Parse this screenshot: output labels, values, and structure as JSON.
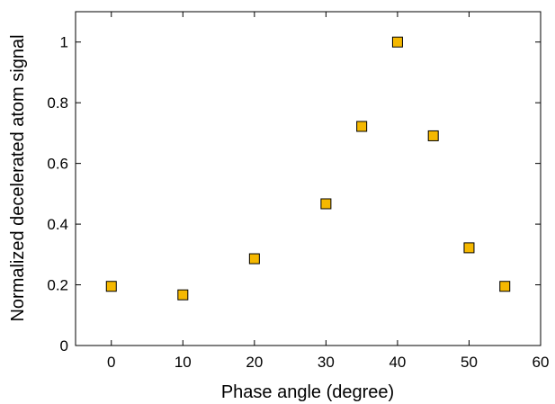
{
  "chart_data": {
    "type": "scatter",
    "xlabel": "Phase angle (degree)",
    "ylabel": "Normalized decelerated atom signal",
    "xlim": [
      -5,
      60
    ],
    "ylim": [
      0,
      1.1
    ],
    "xticks": [
      0,
      10,
      20,
      30,
      40,
      50,
      60
    ],
    "yticks": [
      0,
      0.2,
      0.4,
      0.6,
      0.8,
      1
    ],
    "ytick_labels": [
      "0",
      "0.2",
      "0.4",
      "0.6",
      "0.8",
      "1"
    ],
    "grid": false,
    "marker": "square",
    "marker_color": "#f5b800",
    "marker_edge_color": "#000000",
    "points": [
      {
        "x": 0,
        "y": 0.195
      },
      {
        "x": 10,
        "y": 0.167
      },
      {
        "x": 20,
        "y": 0.286
      },
      {
        "x": 30,
        "y": 0.467
      },
      {
        "x": 35,
        "y": 0.722
      },
      {
        "x": 40,
        "y": 1.0
      },
      {
        "x": 45,
        "y": 0.691
      },
      {
        "x": 50,
        "y": 0.322
      },
      {
        "x": 55,
        "y": 0.195
      }
    ]
  }
}
